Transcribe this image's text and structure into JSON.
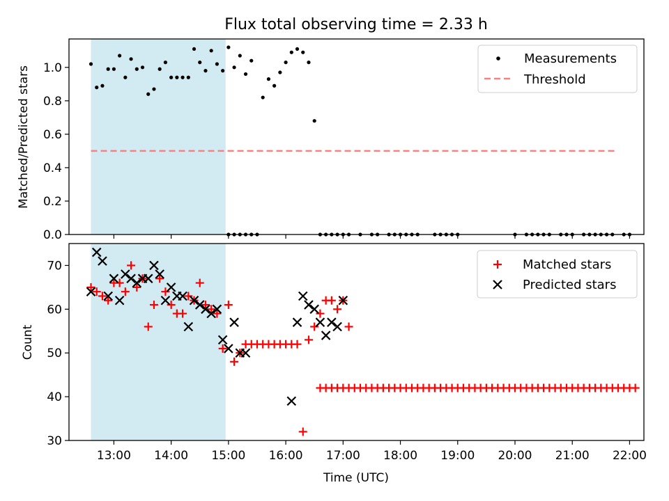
{
  "chart_data": [
    {
      "type": "scatter",
      "title": "Flux total observing time = 2.33 h",
      "xlabel": "",
      "ylabel": "Matched/Predicted stars",
      "x_type": "time",
      "xlim": [
        "12:13",
        "22:15"
      ],
      "ylim": [
        0,
        1.17
      ],
      "x_ticks": [
        "13:00",
        "14:00",
        "15:00",
        "16:00",
        "17:00",
        "18:00",
        "19:00",
        "20:00",
        "21:00",
        "22:00"
      ],
      "y_ticks": [
        "0.0",
        "0.2",
        "0.4",
        "0.6",
        "0.8",
        "1.0"
      ],
      "shaded_region": {
        "x": [
          "12:36",
          "14:57"
        ],
        "color": "#add8e6"
      },
      "legend": {
        "placement": "top-right",
        "entries": [
          "Measurements",
          "Threshold"
        ]
      },
      "threshold": {
        "name": "Threshold",
        "y": 0.5,
        "x": [
          "12:36",
          "21:45"
        ],
        "color": "#ff7f7f"
      },
      "series": [
        {
          "name": "Measurements",
          "color": "#000000",
          "points": [
            [
              "12:36",
              1.02
            ],
            [
              "12:42",
              0.88
            ],
            [
              "12:48",
              0.89
            ],
            [
              "12:54",
              0.99
            ],
            [
              "13:00",
              0.99
            ],
            [
              "13:06",
              1.07
            ],
            [
              "13:12",
              0.94
            ],
            [
              "13:18",
              1.05
            ],
            [
              "13:24",
              0.99
            ],
            [
              "13:30",
              1.0
            ],
            [
              "13:36",
              0.84
            ],
            [
              "13:42",
              0.87
            ],
            [
              "13:48",
              0.99
            ],
            [
              "13:54",
              1.03
            ],
            [
              "14:00",
              0.94
            ],
            [
              "14:06",
              0.94
            ],
            [
              "14:12",
              0.94
            ],
            [
              "14:18",
              0.94
            ],
            [
              "14:24",
              1.11
            ],
            [
              "14:30",
              1.03
            ],
            [
              "14:36",
              0.98
            ],
            [
              "14:42",
              1.1
            ],
            [
              "14:48",
              1.02
            ],
            [
              "14:54",
              0.98
            ],
            [
              "15:00",
              1.12
            ],
            [
              "15:06",
              1.0
            ],
            [
              "15:12",
              1.07
            ],
            [
              "15:18",
              0.96
            ],
            [
              "15:24",
              1.04
            ],
            [
              "15:00",
              0.0
            ],
            [
              "15:06",
              0.0
            ],
            [
              "15:12",
              0.0
            ],
            [
              "15:18",
              0.0
            ],
            [
              "15:24",
              0.0
            ],
            [
              "15:30",
              0.0
            ],
            [
              "15:36",
              0.82
            ],
            [
              "15:42",
              0.93
            ],
            [
              "15:48",
              0.89
            ],
            [
              "15:54",
              0.97
            ],
            [
              "16:00",
              1.03
            ],
            [
              "16:06",
              1.09
            ],
            [
              "16:12",
              1.11
            ],
            [
              "16:18",
              1.09
            ],
            [
              "16:24",
              1.03
            ],
            [
              "16:30",
              0.68
            ],
            [
              "16:36",
              0.0
            ],
            [
              "16:42",
              0.0
            ],
            [
              "16:48",
              0.0
            ],
            [
              "16:54",
              0.0
            ],
            [
              "17:00",
              0.0
            ],
            [
              "17:06",
              0.0
            ],
            [
              "17:18",
              0.0
            ],
            [
              "17:30",
              0.0
            ],
            [
              "17:36",
              0.0
            ],
            [
              "17:48",
              0.0
            ],
            [
              "17:54",
              0.0
            ],
            [
              "18:00",
              0.0
            ],
            [
              "18:06",
              0.0
            ],
            [
              "18:12",
              0.0
            ],
            [
              "18:18",
              0.0
            ],
            [
              "18:36",
              0.0
            ],
            [
              "18:42",
              0.0
            ],
            [
              "18:48",
              0.0
            ],
            [
              "18:54",
              0.0
            ],
            [
              "19:00",
              0.0
            ],
            [
              "20:00",
              0.0
            ],
            [
              "20:12",
              0.0
            ],
            [
              "20:18",
              0.0
            ],
            [
              "20:24",
              0.0
            ],
            [
              "20:30",
              0.0
            ],
            [
              "20:36",
              0.0
            ],
            [
              "20:48",
              0.0
            ],
            [
              "20:54",
              0.0
            ],
            [
              "21:00",
              0.0
            ],
            [
              "21:12",
              0.0
            ],
            [
              "21:18",
              0.0
            ],
            [
              "21:24",
              0.0
            ],
            [
              "21:30",
              0.0
            ],
            [
              "21:36",
              0.0
            ],
            [
              "21:42",
              0.0
            ],
            [
              "21:54",
              0.0
            ],
            [
              "22:00",
              0.0
            ]
          ]
        }
      ]
    },
    {
      "type": "scatter",
      "title": "",
      "xlabel": "Time (UTC)",
      "ylabel": "Count",
      "x_type": "time",
      "xlim": [
        "12:13",
        "22:15"
      ],
      "ylim": [
        30,
        75
      ],
      "x_ticks": [
        "13:00",
        "14:00",
        "15:00",
        "16:00",
        "17:00",
        "18:00",
        "19:00",
        "20:00",
        "21:00",
        "22:00"
      ],
      "y_ticks": [
        "30",
        "40",
        "50",
        "60",
        "70"
      ],
      "shaded_region": {
        "x": [
          "12:36",
          "14:57"
        ],
        "color": "#add8e6"
      },
      "legend": {
        "placement": "top-right",
        "entries": [
          "Matched stars",
          "Predicted stars"
        ]
      },
      "series": [
        {
          "name": "Matched stars",
          "marker": "plus",
          "color": "#ff0000",
          "points": [
            [
              "12:36",
              65
            ],
            [
              "12:42",
              64
            ],
            [
              "12:48",
              63
            ],
            [
              "12:54",
              62
            ],
            [
              "13:00",
              66
            ],
            [
              "13:06",
              66
            ],
            [
              "13:12",
              64
            ],
            [
              "13:18",
              70
            ],
            [
              "13:24",
              65
            ],
            [
              "13:30",
              67
            ],
            [
              "13:36",
              56
            ],
            [
              "13:42",
              61
            ],
            [
              "13:48",
              67
            ],
            [
              "13:54",
              64
            ],
            [
              "14:00",
              61
            ],
            [
              "14:06",
              59
            ],
            [
              "14:12",
              59
            ],
            [
              "14:18",
              63
            ],
            [
              "14:24",
              62
            ],
            [
              "14:30",
              66
            ],
            [
              "14:36",
              61
            ],
            [
              "14:42",
              60
            ],
            [
              "14:48",
              59
            ],
            [
              "14:54",
              51
            ],
            [
              "15:00",
              61
            ],
            [
              "15:06",
              48
            ],
            [
              "15:12",
              50
            ],
            [
              "15:18",
              52
            ],
            [
              "15:24",
              52
            ],
            [
              "15:30",
              52
            ],
            [
              "15:36",
              52
            ],
            [
              "15:42",
              52
            ],
            [
              "15:48",
              52
            ],
            [
              "15:54",
              52
            ],
            [
              "16:00",
              52
            ],
            [
              "16:06",
              52
            ],
            [
              "16:12",
              52
            ],
            [
              "16:18",
              32
            ],
            [
              "16:24",
              53
            ],
            [
              "16:30",
              56
            ],
            [
              "16:36",
              59
            ],
            [
              "16:42",
              62
            ],
            [
              "16:48",
              62
            ],
            [
              "16:54",
              60
            ],
            [
              "17:00",
              62
            ],
            [
              "17:06",
              56
            ],
            [
              "16:36",
              42
            ],
            [
              "16:42",
              42
            ],
            [
              "16:48",
              42
            ],
            [
              "16:54",
              42
            ],
            [
              "17:00",
              42
            ],
            [
              "17:06",
              42
            ],
            [
              "17:12",
              42
            ],
            [
              "17:18",
              42
            ],
            [
              "17:24",
              42
            ],
            [
              "17:30",
              42
            ],
            [
              "17:36",
              42
            ],
            [
              "17:42",
              42
            ],
            [
              "17:48",
              42
            ],
            [
              "17:54",
              42
            ],
            [
              "18:00",
              42
            ],
            [
              "18:06",
              42
            ],
            [
              "18:12",
              42
            ],
            [
              "18:18",
              42
            ],
            [
              "18:24",
              42
            ],
            [
              "18:30",
              42
            ],
            [
              "18:36",
              42
            ],
            [
              "18:42",
              42
            ],
            [
              "18:48",
              42
            ],
            [
              "18:54",
              42
            ],
            [
              "19:00",
              42
            ],
            [
              "19:06",
              42
            ],
            [
              "19:12",
              42
            ],
            [
              "19:18",
              42
            ],
            [
              "19:24",
              42
            ],
            [
              "19:30",
              42
            ],
            [
              "19:36",
              42
            ],
            [
              "19:42",
              42
            ],
            [
              "19:48",
              42
            ],
            [
              "19:54",
              42
            ],
            [
              "20:00",
              42
            ],
            [
              "20:06",
              42
            ],
            [
              "20:12",
              42
            ],
            [
              "20:18",
              42
            ],
            [
              "20:24",
              42
            ],
            [
              "20:30",
              42
            ],
            [
              "20:36",
              42
            ],
            [
              "20:42",
              42
            ],
            [
              "20:48",
              42
            ],
            [
              "20:54",
              42
            ],
            [
              "21:00",
              42
            ],
            [
              "21:06",
              42
            ],
            [
              "21:12",
              42
            ],
            [
              "21:18",
              42
            ],
            [
              "21:24",
              42
            ],
            [
              "21:30",
              42
            ],
            [
              "21:36",
              42
            ],
            [
              "21:42",
              42
            ],
            [
              "21:48",
              42
            ],
            [
              "21:54",
              42
            ],
            [
              "22:00",
              42
            ],
            [
              "22:06",
              42
            ]
          ]
        },
        {
          "name": "Predicted stars",
          "marker": "x",
          "color": "#000000",
          "points": [
            [
              "12:36",
              64
            ],
            [
              "12:42",
              73
            ],
            [
              "12:48",
              71
            ],
            [
              "12:54",
              63
            ],
            [
              "13:00",
              67
            ],
            [
              "13:06",
              62
            ],
            [
              "13:12",
              68
            ],
            [
              "13:18",
              67
            ],
            [
              "13:24",
              66
            ],
            [
              "13:30",
              67
            ],
            [
              "13:36",
              67
            ],
            [
              "13:42",
              70
            ],
            [
              "13:48",
              68
            ],
            [
              "13:54",
              62
            ],
            [
              "14:00",
              65
            ],
            [
              "14:06",
              63
            ],
            [
              "14:12",
              63
            ],
            [
              "14:18",
              56
            ],
            [
              "14:24",
              62
            ],
            [
              "14:30",
              61
            ],
            [
              "14:36",
              60
            ],
            [
              "14:42",
              59
            ],
            [
              "14:48",
              60
            ],
            [
              "14:54",
              53
            ],
            [
              "15:00",
              51
            ],
            [
              "15:06",
              57
            ],
            [
              "15:12",
              50
            ],
            [
              "15:18",
              50
            ],
            [
              "16:06",
              39
            ],
            [
              "16:12",
              57
            ],
            [
              "16:18",
              63
            ],
            [
              "16:24",
              61
            ],
            [
              "16:30",
              60
            ],
            [
              "16:36",
              57
            ],
            [
              "16:42",
              54
            ],
            [
              "16:48",
              57
            ],
            [
              "16:54",
              56
            ],
            [
              "17:00",
              62
            ]
          ]
        }
      ]
    }
  ]
}
